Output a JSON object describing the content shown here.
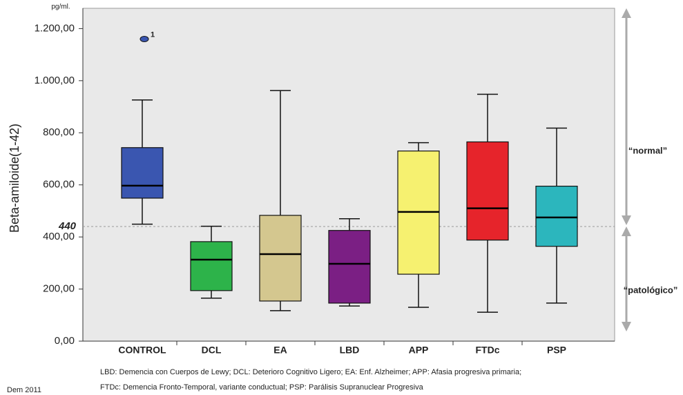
{
  "chart_data": {
    "type": "boxplot",
    "unit": "pg/ml.",
    "y_label": "Beta-amiloide(1-42)",
    "categories": [
      "CONTROL",
      "DCL",
      "EA",
      "LBD",
      "APP",
      "FTDc",
      "PSP"
    ],
    "colors": [
      "#3a56b0",
      "#2db34a",
      "#d4c78f",
      "#7b1f84",
      "#f6f170",
      "#e6242b",
      "#2cb6bd"
    ],
    "boxes": [
      {
        "min": 449,
        "q1": 549,
        "median": 597,
        "q3": 743,
        "max": 926
      },
      {
        "min": 165,
        "q1": 194,
        "median": 313,
        "q3": 382,
        "max": 441
      },
      {
        "min": 117,
        "q1": 154,
        "median": 334,
        "q3": 483,
        "max": 962
      },
      {
        "min": 135,
        "q1": 146,
        "median": 297,
        "q3": 425,
        "max": 470
      },
      {
        "min": 130,
        "q1": 257,
        "median": 496,
        "q3": 730,
        "max": 762
      },
      {
        "min": 111,
        "q1": 388,
        "median": 510,
        "q3": 765,
        "max": 948
      },
      {
        "min": 146,
        "q1": 364,
        "median": 475,
        "q3": 595,
        "max": 818
      }
    ],
    "outliers": [
      {
        "category": "CONTROL",
        "value": 1160,
        "label": "1"
      }
    ],
    "reference_line": 440,
    "ylim": [
      0,
      1270
    ],
    "yticks": [
      {
        "value": 0,
        "label": "0,00"
      },
      {
        "value": 200,
        "label": "200,00"
      },
      {
        "value": 400,
        "label": "400,00"
      },
      {
        "value": 600,
        "label": "600,00"
      },
      {
        "value": 800,
        "label": "800,00"
      },
      {
        "value": 1000,
        "label": "1.000,00"
      },
      {
        "value": 1200,
        "label": "1.200,00"
      }
    ],
    "annotations": [
      "“normal”",
      "“patológico”"
    ],
    "notes": [
      "LBD: Demencia con Cuerpos de Lewy; DCL: Deterioro Cognitivo Ligero; EA: Enf. Alzheimer; APP: Afasia progresiva primaria;",
      "FTDc: Demencia Fronto-Temporal, variante conductual; PSP: Parálisis Supranuclear Progresiva"
    ],
    "source": "Dem 2011"
  }
}
